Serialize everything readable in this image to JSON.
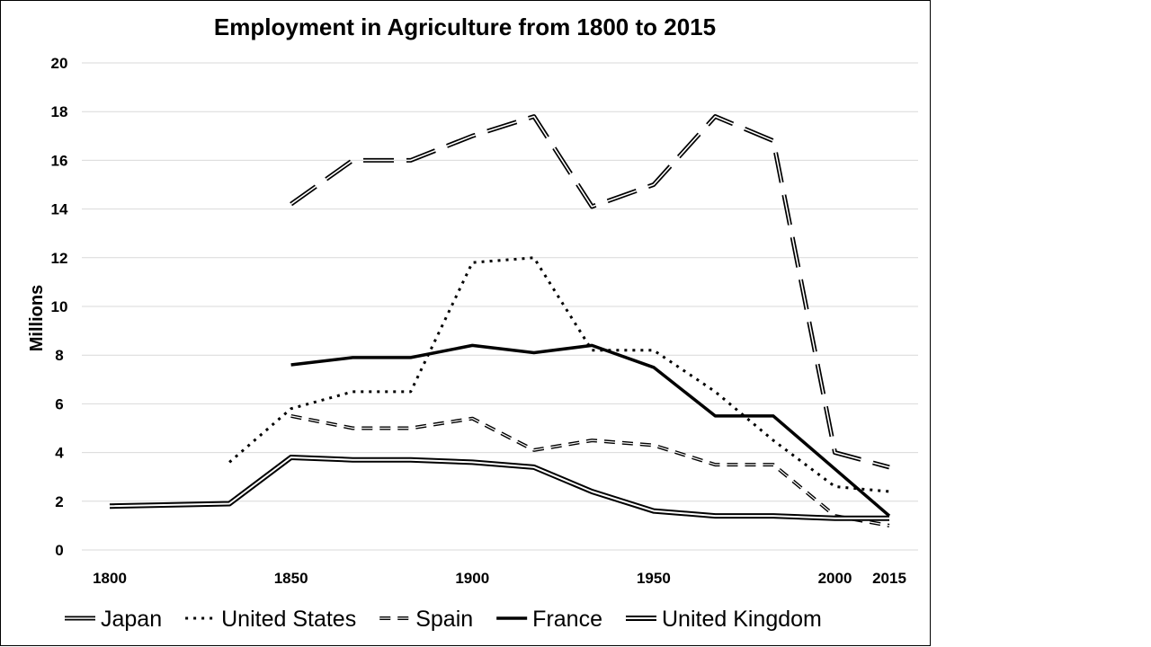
{
  "chart_data": {
    "type": "line",
    "title": "Employment in Agriculture from 1800 to 2015",
    "xlabel": "",
    "ylabel": "Millions",
    "ylim": [
      0,
      20
    ],
    "xlim": [
      1800,
      2015
    ],
    "y_ticks": [
      "0",
      "2",
      "4",
      "6",
      "8",
      "10",
      "12",
      "14",
      "16",
      "18",
      "20"
    ],
    "x_ticks": [
      "1800",
      "1850",
      "1900",
      "1950",
      "2000",
      "2015"
    ],
    "grid": "horizontal",
    "legend_position": "bottom",
    "series": [
      {
        "name": "Japan",
        "style": "double-long-dash",
        "x": [
          1850,
          1867,
          1883,
          1900,
          1917,
          1933,
          1950,
          1967,
          1983,
          2000,
          2015
        ],
        "y": [
          14.2,
          16.0,
          16.0,
          17.0,
          17.8,
          14.1,
          15.0,
          17.8,
          16.8,
          4.0,
          3.4
        ]
      },
      {
        "name": "United States",
        "style": "dotted",
        "x": [
          1833,
          1850,
          1867,
          1883,
          1900,
          1917,
          1933,
          1950,
          1967,
          1983,
          2000,
          2015
        ],
        "y": [
          3.6,
          5.8,
          6.5,
          6.5,
          11.8,
          12.0,
          8.2,
          8.2,
          6.5,
          4.5,
          2.6,
          2.4
        ]
      },
      {
        "name": "Spain",
        "style": "double-short-dash",
        "x": [
          1850,
          1867,
          1883,
          1900,
          1917,
          1933,
          1950,
          1967,
          1983,
          2000,
          2015
        ],
        "y": [
          5.5,
          5.0,
          5.0,
          5.4,
          4.1,
          4.5,
          4.3,
          3.5,
          3.5,
          1.4,
          1.0
        ]
      },
      {
        "name": "France",
        "style": "thick-solid",
        "x": [
          1850,
          1867,
          1883,
          1900,
          1917,
          1933,
          1950,
          1967,
          1983,
          2015
        ],
        "y": [
          7.6,
          7.9,
          7.9,
          8.4,
          8.1,
          8.4,
          7.5,
          5.5,
          5.5,
          1.4
        ]
      },
      {
        "name": "United Kingdom",
        "style": "double-solid",
        "x": [
          1800,
          1833,
          1850,
          1867,
          1883,
          1900,
          1917,
          1933,
          1950,
          1967,
          1983,
          2000,
          2015
        ],
        "y": [
          1.8,
          1.9,
          3.8,
          3.7,
          3.7,
          3.6,
          3.4,
          2.4,
          1.6,
          1.4,
          1.4,
          1.3,
          1.3
        ]
      }
    ],
    "colors": {
      "line": "#000000",
      "gridline": "#d9d9d9",
      "background": "#ffffff",
      "frame": "#000000"
    }
  }
}
